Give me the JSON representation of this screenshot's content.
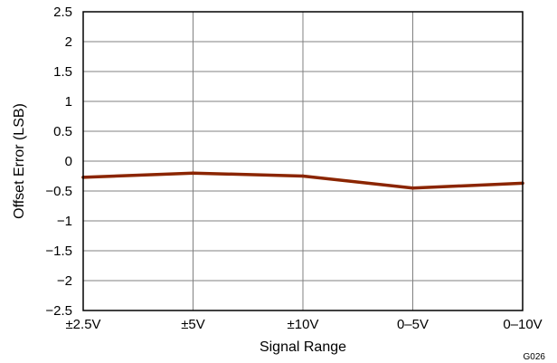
{
  "chart_data": {
    "type": "line",
    "categories": [
      "±2.5V",
      "±5V",
      "±10V",
      "0–5V",
      "0–10V"
    ],
    "series": [
      {
        "values": [
          -0.27,
          -0.2,
          -0.25,
          -0.45,
          -0.37
        ]
      }
    ],
    "xlabel": "Signal Range",
    "ylabel": "Offset Error (LSB)",
    "ylim": [
      -2.5,
      2.5
    ],
    "ytick_labels": [
      "−2.5",
      "−2",
      "−1.5",
      "−1",
      "−0.5",
      "0",
      "0.5",
      "1",
      "1.5",
      "2",
      "2.5"
    ],
    "grid": true,
    "graph_code": "G026",
    "colors": {
      "line": "#8b2500",
      "grid": "#808080",
      "frame": "#000000"
    }
  }
}
